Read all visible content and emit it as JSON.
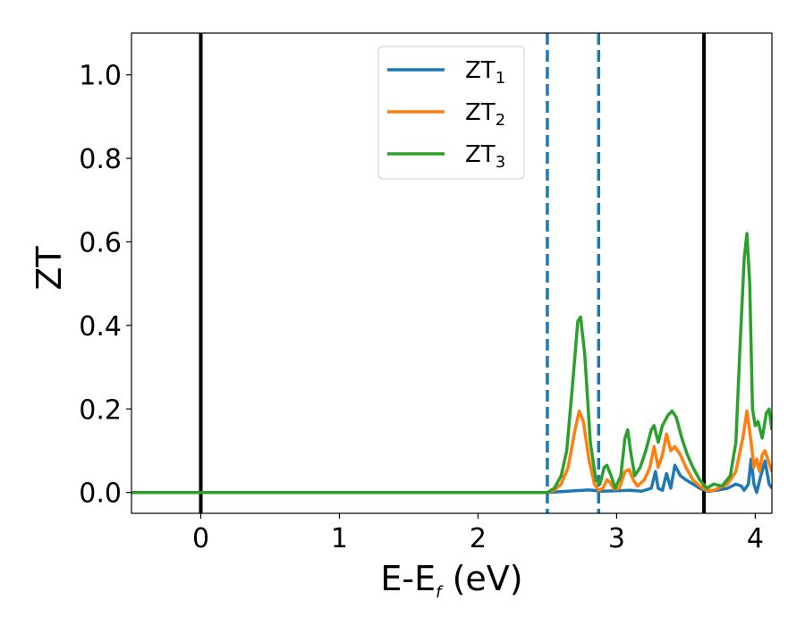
{
  "chart_data": {
    "type": "line",
    "title": "",
    "xlabel": {
      "main": "E-E",
      "sub": "f",
      "suffix": " (eV)"
    },
    "ylabel": "ZT",
    "xlim": [
      -0.5,
      4.12
    ],
    "ylim": [
      -0.05,
      1.1
    ],
    "x_ticks": [
      0,
      1,
      2,
      3,
      4
    ],
    "x_tick_labels": [
      "0",
      "1",
      "2",
      "3",
      "4"
    ],
    "y_ticks": [
      0.0,
      0.2,
      0.4,
      0.6,
      0.8,
      1.0
    ],
    "y_tick_labels": [
      "0.0",
      "0.2",
      "0.4",
      "0.6",
      "0.8",
      "1.0"
    ],
    "grid": false,
    "legend_position": "top-center",
    "vertical_lines": [
      {
        "x": 0.0,
        "style": "solid",
        "color": "#000000"
      },
      {
        "x": 3.63,
        "style": "solid",
        "color": "#000000"
      },
      {
        "x": 2.5,
        "style": "dashed",
        "color": "#1f77b4"
      },
      {
        "x": 2.87,
        "style": "dashed",
        "color": "#1f77b4"
      }
    ],
    "series": [
      {
        "name": "ZT",
        "subscript": "1",
        "color": "#1f77b4",
        "points": [
          [
            -0.5,
            0
          ],
          [
            2.5,
            0
          ],
          [
            2.6,
            0.002
          ],
          [
            2.7,
            0.004
          ],
          [
            2.8,
            0.006
          ],
          [
            2.9,
            0.003
          ],
          [
            3.0,
            0.004
          ],
          [
            3.1,
            0.005
          ],
          [
            3.18,
            0.003
          ],
          [
            3.25,
            0.01
          ],
          [
            3.28,
            0.05
          ],
          [
            3.3,
            0.01
          ],
          [
            3.33,
            0.005
          ],
          [
            3.36,
            0.045
          ],
          [
            3.39,
            0.01
          ],
          [
            3.42,
            0.065
          ],
          [
            3.46,
            0.04
          ],
          [
            3.5,
            0.03
          ],
          [
            3.55,
            0.02
          ],
          [
            3.6,
            0.01
          ],
          [
            3.66,
            0.003
          ],
          [
            3.72,
            0.005
          ],
          [
            3.8,
            0.01
          ],
          [
            3.86,
            0.02
          ],
          [
            3.9,
            0.015
          ],
          [
            3.92,
            0.005
          ],
          [
            3.95,
            0.02
          ],
          [
            3.97,
            0.08
          ],
          [
            3.99,
            0.02
          ],
          [
            4.01,
            0.0
          ],
          [
            4.04,
            0.04
          ],
          [
            4.07,
            0.075
          ],
          [
            4.1,
            0.02
          ],
          [
            4.12,
            0.01
          ]
        ]
      },
      {
        "name": "ZT",
        "subscript": "2",
        "color": "#ff7f0e",
        "points": [
          [
            -0.5,
            0
          ],
          [
            2.5,
            0
          ],
          [
            2.55,
            0.005
          ],
          [
            2.6,
            0.02
          ],
          [
            2.65,
            0.06
          ],
          [
            2.7,
            0.15
          ],
          [
            2.73,
            0.195
          ],
          [
            2.76,
            0.17
          ],
          [
            2.8,
            0.08
          ],
          [
            2.84,
            0.02
          ],
          [
            2.87,
            0.005
          ],
          [
            2.9,
            0.01
          ],
          [
            2.93,
            0.03
          ],
          [
            2.95,
            0.025
          ],
          [
            2.98,
            0.008
          ],
          [
            3.02,
            0.01
          ],
          [
            3.06,
            0.05
          ],
          [
            3.09,
            0.055
          ],
          [
            3.12,
            0.03
          ],
          [
            3.15,
            0.015
          ],
          [
            3.2,
            0.03
          ],
          [
            3.24,
            0.06
          ],
          [
            3.27,
            0.11
          ],
          [
            3.3,
            0.06
          ],
          [
            3.33,
            0.09
          ],
          [
            3.36,
            0.14
          ],
          [
            3.39,
            0.1
          ],
          [
            3.42,
            0.11
          ],
          [
            3.46,
            0.09
          ],
          [
            3.5,
            0.06
          ],
          [
            3.55,
            0.03
          ],
          [
            3.6,
            0.015
          ],
          [
            3.65,
            0.005
          ],
          [
            3.7,
            0.005
          ],
          [
            3.8,
            0.02
          ],
          [
            3.86,
            0.05
          ],
          [
            3.91,
            0.13
          ],
          [
            3.94,
            0.195
          ],
          [
            3.97,
            0.12
          ],
          [
            3.99,
            0.06
          ],
          [
            4.01,
            0.08
          ],
          [
            4.03,
            0.05
          ],
          [
            4.05,
            0.09
          ],
          [
            4.07,
            0.1
          ],
          [
            4.09,
            0.08
          ],
          [
            4.12,
            0.05
          ]
        ]
      },
      {
        "name": "ZT",
        "subscript": "3",
        "color": "#2ca02c",
        "points": [
          [
            -0.5,
            0
          ],
          [
            2.5,
            0
          ],
          [
            2.55,
            0.01
          ],
          [
            2.6,
            0.04
          ],
          [
            2.64,
            0.1
          ],
          [
            2.68,
            0.25
          ],
          [
            2.72,
            0.41
          ],
          [
            2.74,
            0.42
          ],
          [
            2.77,
            0.33
          ],
          [
            2.81,
            0.12
          ],
          [
            2.85,
            0.03
          ],
          [
            2.88,
            0.02
          ],
          [
            2.91,
            0.06
          ],
          [
            2.93,
            0.065
          ],
          [
            2.96,
            0.04
          ],
          [
            2.99,
            0.01
          ],
          [
            3.03,
            0.04
          ],
          [
            3.06,
            0.13
          ],
          [
            3.08,
            0.15
          ],
          [
            3.1,
            0.1
          ],
          [
            3.13,
            0.04
          ],
          [
            3.17,
            0.06
          ],
          [
            3.21,
            0.1
          ],
          [
            3.25,
            0.15
          ],
          [
            3.27,
            0.16
          ],
          [
            3.3,
            0.12
          ],
          [
            3.33,
            0.16
          ],
          [
            3.37,
            0.185
          ],
          [
            3.4,
            0.195
          ],
          [
            3.43,
            0.18
          ],
          [
            3.47,
            0.13
          ],
          [
            3.51,
            0.09
          ],
          [
            3.55,
            0.06
          ],
          [
            3.6,
            0.03
          ],
          [
            3.65,
            0.01
          ],
          [
            3.7,
            0.02
          ],
          [
            3.76,
            0.015
          ],
          [
            3.82,
            0.04
          ],
          [
            3.86,
            0.12
          ],
          [
            3.89,
            0.35
          ],
          [
            3.92,
            0.56
          ],
          [
            3.94,
            0.62
          ],
          [
            3.96,
            0.5
          ],
          [
            3.98,
            0.2
          ],
          [
            4.0,
            0.16
          ],
          [
            4.02,
            0.17
          ],
          [
            4.05,
            0.13
          ],
          [
            4.08,
            0.19
          ],
          [
            4.1,
            0.2
          ],
          [
            4.12,
            0.15
          ]
        ]
      }
    ]
  }
}
